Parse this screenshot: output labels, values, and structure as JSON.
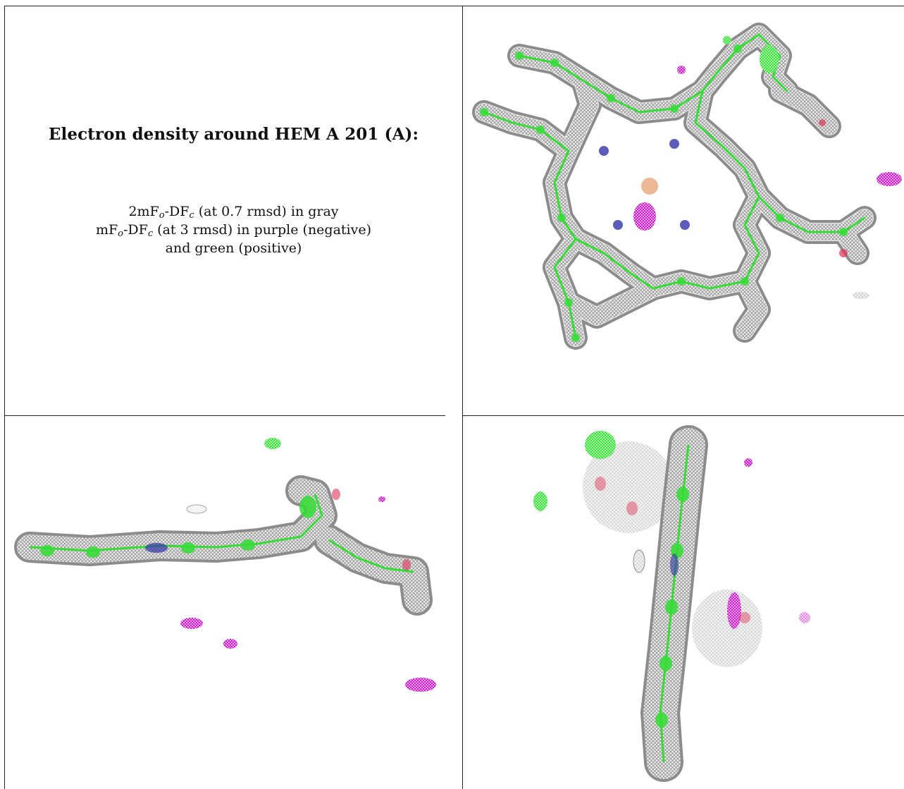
{
  "caption": {
    "title": "Electron density around HEM A 201 (A):",
    "lines": [
      {
        "pre": "2mF",
        "sub1": "o",
        "mid": "-DF",
        "sub2": "c",
        "post": " (at 0.7 rmsd) in gray"
      },
      {
        "pre": "mF",
        "sub1": "o",
        "mid": "-DF",
        "sub2": "c",
        "post": " (at 3 rmsd) in purple (negative)"
      },
      {
        "pre": "",
        "sub1": "",
        "mid": "",
        "sub2": "",
        "post": "and green (positive)"
      }
    ]
  },
  "colors": {
    "mesh_2fofc": "#8c8c8c",
    "difference_negative": "#cc00cc",
    "difference_positive": "#22ee22",
    "carbon": "#33dd33",
    "nitrogen": "#3333aa",
    "oxygen": "#dd3355",
    "iron": "#e08850"
  },
  "panels": [
    {
      "view": "top"
    },
    {
      "view": "side"
    },
    {
      "view": "edge"
    }
  ]
}
